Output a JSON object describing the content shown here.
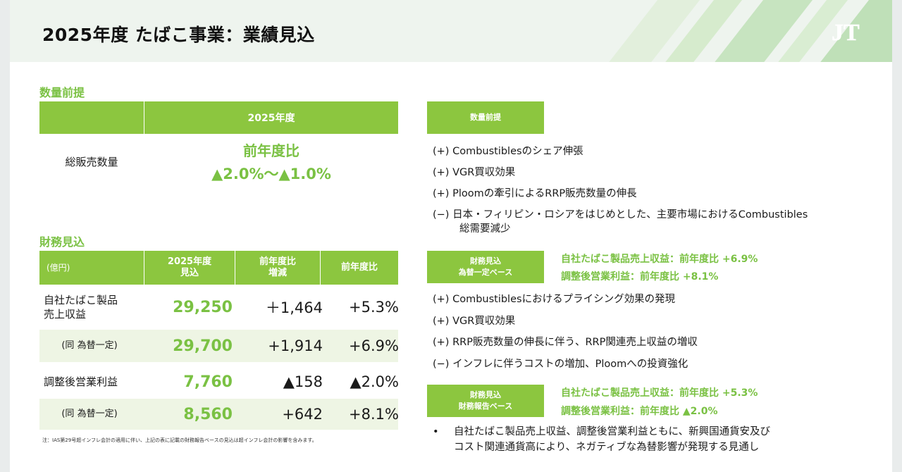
{
  "title": "2025年度 たばこ事業：業績見込",
  "logo_text": "JT",
  "volume": {
    "section_label": "数量前提",
    "year_header": "2025年度",
    "row_label": "総販売数量",
    "ratio_label": "前年度比",
    "ratio_value": "▲2.0%～▲1.0%"
  },
  "finance": {
    "section_label": "財務見込",
    "headers": {
      "unit": "(億円)",
      "forecast": "2025年度\n見込",
      "diff": "前年度比\n増減",
      "ratio": "前年度比"
    },
    "rows": [
      {
        "label": "自社たばこ製品\n売上収益",
        "value": "29,250",
        "diff": "＋1,464",
        "ratio": "+5.3%"
      },
      {
        "label": "(同 為替一定)",
        "value": "29,700",
        "diff": "+1,914",
        "ratio": "+6.9%"
      },
      {
        "label": "調整後営業利益",
        "value": "7,760",
        "diff": "▲158",
        "ratio": "▲2.0%"
      },
      {
        "label": "(同 為替一定)",
        "value": "8,560",
        "diff": "+642",
        "ratio": "+8.1%"
      }
    ],
    "note": "注：IAS第29号超インフレ会計の適用に伴い、上記の表に記載の財務報告ベースの見込は超インフレ会計の影響を含みます。"
  },
  "right": {
    "volume_tag": "数量前提",
    "volume_items": [
      "(+) Combustiblesのシェア伸張",
      "(+) VGR買収効果",
      "(+) Ploomの牽引によるRRP販売数量の伸長",
      "(−) 日本・フィリピン・ロシアをはじめとした、主要市場におけるCombustibles",
      "総需要減少"
    ],
    "const_tag_1": "財務見込",
    "const_tag_2": "為替一定ベース",
    "const_hl_1": "自社たばこ製品売上収益：前年度比 +6.9%",
    "const_hl_2": "調整後営業利益：前年度比 +8.1%",
    "const_items": [
      "(+) Combustiblesにおけるプライシング効果の発現",
      "(+) VGR買収効果",
      "(+) RRP販売数量の伸長に伴う、RRP関連売上収益の増収",
      "(−) インフレに伴うコストの増加、Ploomへの投資強化"
    ],
    "report_tag_1": "財務見込",
    "report_tag_2": "財務報告ベース",
    "report_hl_1": "自社たばこ製品売上収益：前年度比 +5.3%",
    "report_hl_2": "調整後営業利益：前年度比 ▲2.0%",
    "report_bullet": "•",
    "report_text_1": "自社たばこ製品売上収益、調整後営業利益ともに、新興国通貨安及び",
    "report_text_2": "コスト関連通貨高により、ネガティブな為替影響が発現する見通し"
  },
  "colors": {
    "accent": "#8cc63f",
    "accent_text": "#7ac143",
    "row_shade": "#eef5e4"
  }
}
